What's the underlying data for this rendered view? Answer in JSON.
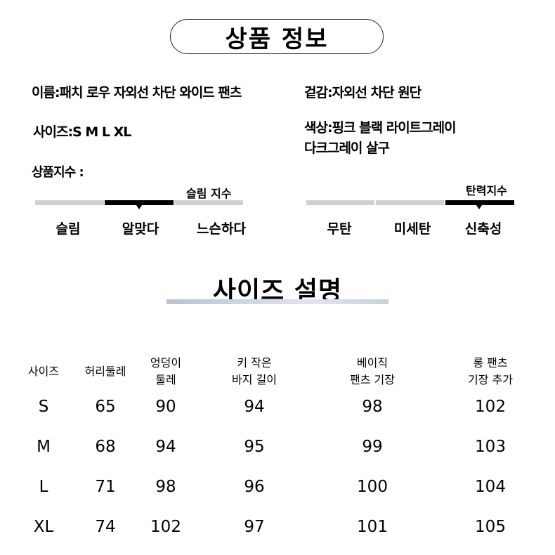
{
  "product_info": {
    "title": "상품 정보",
    "name": "이름:패치 로우 자외선 차단 와이드 팬츠",
    "fabric": "겉감:자외선 차단 원단",
    "sizes": "사이즈:S M L XL",
    "colors_line1": "색상:핑크 블랙 라이트그레이",
    "colors_line2": "다크그레이 살구",
    "index_label": "상품지수 :"
  },
  "slim_index": {
    "label": "슬림 지수",
    "levels": [
      "슬림",
      "알맞다",
      "느슨하다"
    ],
    "selected": "알맞다"
  },
  "elastic_index": {
    "label": "탄력지수",
    "levels": [
      "무탄",
      "미세탄",
      "신축성"
    ],
    "selected": "신축성"
  },
  "size_guide": {
    "title": "사이즈 설명",
    "headers": [
      [
        "사이즈"
      ],
      [
        "허리둘레"
      ],
      [
        "엉덩이",
        "둘레"
      ],
      [
        "키 작은",
        "바지 길이"
      ],
      [
        "베이직",
        "팬츠 기장"
      ],
      [
        "롱 팬츠",
        "기장 추가"
      ]
    ],
    "rows": [
      [
        "S",
        "65",
        "90",
        "94",
        "98",
        "102"
      ],
      [
        "M",
        "68",
        "94",
        "95",
        "99",
        "103"
      ],
      [
        "L",
        "71",
        "98",
        "96",
        "100",
        "104"
      ],
      [
        "XL",
        "74",
        "102",
        "97",
        "101",
        "105"
      ]
    ]
  },
  "colors": {
    "bar_inactive": "#d0d0d0",
    "bar_active": "#000000",
    "underline": "#c8d0dc"
  }
}
